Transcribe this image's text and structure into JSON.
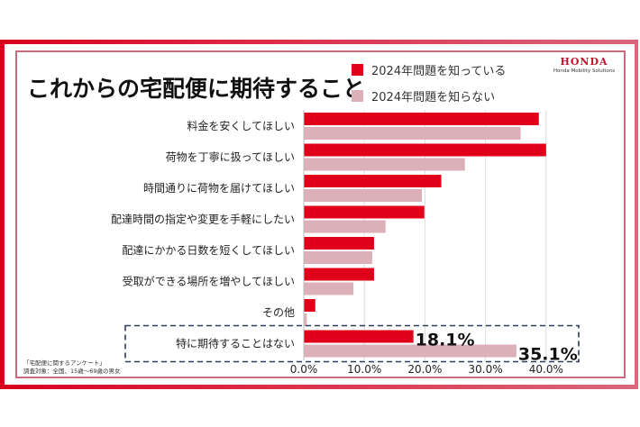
{
  "title": "これからの宅配便に期待すること",
  "logo": {
    "brand": "HONDA",
    "subtitle": "Honda Mobility Solutions"
  },
  "source": {
    "line1": "「宅配便に関するアンケート」",
    "line2": "調査対象：全国、15歳〜69歳の男女"
  },
  "colors": {
    "aware": "#e0001a",
    "unaware": "#dcb0b8",
    "frame": "#d9001f",
    "highlight_box": "#2e3a5c"
  },
  "chart_data": {
    "type": "bar",
    "orientation": "horizontal",
    "title": "これからの宅配便に期待すること",
    "xlabel": "",
    "ylabel": "",
    "xlim": [
      0,
      40
    ],
    "xticks": [
      "0.0%",
      "10.0%",
      "20.0%",
      "30.0%",
      "40.0%"
    ],
    "xtick_values": [
      0,
      10,
      20,
      30,
      40
    ],
    "grid": true,
    "legend_position": "top-right",
    "categories": [
      "料金を安くしてほしい",
      "荷物を丁寧に扱ってほしい",
      "時間通りに荷物を届けてほしい",
      "配達時間の指定や変更を手軽にしたい",
      "配達にかかる日数を短くしてほしい",
      "受取ができる場所を増やしてほしい",
      "その他",
      "特に期待することはない"
    ],
    "series": [
      {
        "name": "2024年問題を知っている",
        "values": [
          38.8,
          40.0,
          22.7,
          19.9,
          11.6,
          11.6,
          1.9,
          18.1
        ]
      },
      {
        "name": "2024年問題を知らない",
        "values": [
          35.8,
          26.6,
          19.5,
          13.5,
          11.3,
          8.2,
          0.5,
          35.1
        ]
      }
    ],
    "annotations": [
      {
        "category": "特に期待することはない",
        "series": "2024年問題を知っている",
        "text": "18.1%"
      },
      {
        "category": "特に期待することはない",
        "series": "2024年問題を知らない",
        "text": "35.1%"
      }
    ],
    "highlighted_category": "特に期待することはない"
  }
}
